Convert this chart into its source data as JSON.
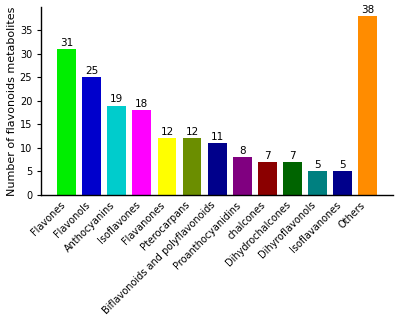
{
  "categories": [
    "Flavones",
    "Flavonols",
    "Anthocyanins",
    "Isoflavones",
    "Flavanones",
    "Pterocarpans",
    "Biflavonoids and polyflavonoids",
    "Proanthocyanidins",
    "chalcones",
    "Dihydrochalcones",
    "Dihyroflavonols",
    "Isoflavanones",
    "Others"
  ],
  "values": [
    31,
    25,
    19,
    18,
    12,
    12,
    11,
    8,
    7,
    7,
    5,
    5,
    38
  ],
  "colors": [
    "#00ee00",
    "#0000cc",
    "#00cccc",
    "#ff00ff",
    "#ffff00",
    "#6b8e00",
    "#00008b",
    "#800080",
    "#8b0000",
    "#006400",
    "#008080",
    "#00008b",
    "#ff8c00"
  ],
  "ylabel": "Number of flavonoids metabolites",
  "ylim": [
    0,
    40
  ],
  "yticks": [
    0,
    5,
    10,
    15,
    20,
    25,
    30,
    35
  ],
  "label_fontsize": 8,
  "tick_fontsize": 7,
  "value_fontsize": 7.5,
  "fig_width": 4.0,
  "fig_height": 3.23,
  "dpi": 100
}
